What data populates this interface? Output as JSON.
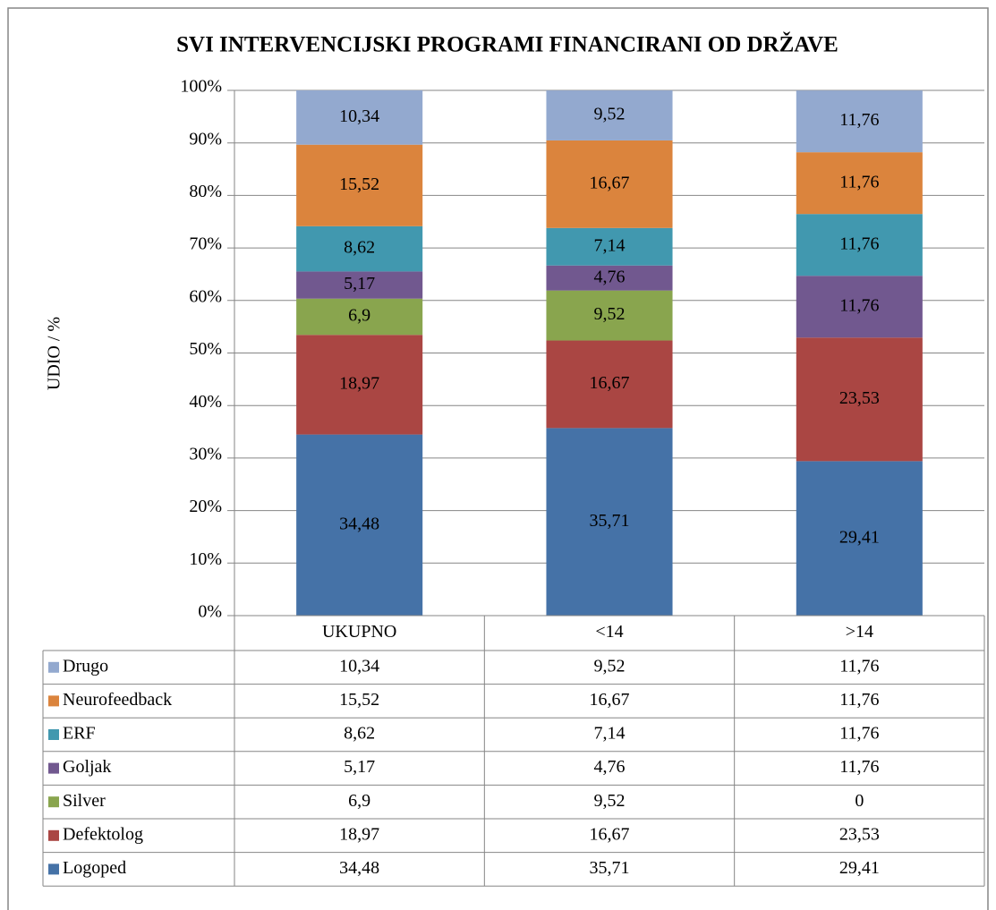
{
  "chart_data": {
    "type": "stacked_bar_100",
    "title": "SVI INTERVENCIJSKI PROGRAMI FINANCIRANI OD DRŽAVE",
    "y_label": "UDIO  / %",
    "categories": [
      "UKUPNO",
      "<14",
      ">14"
    ],
    "series": [
      {
        "name": "Logoped",
        "color": "#4572a7",
        "values": [
          34.48,
          35.71,
          29.41
        ],
        "value_labels": [
          "34,48",
          "35,71",
          "29,41"
        ]
      },
      {
        "name": "Defektolog",
        "color": "#aa4643",
        "values": [
          18.97,
          16.67,
          23.53
        ],
        "value_labels": [
          "18,97",
          "16,67",
          "23,53"
        ]
      },
      {
        "name": "Silver",
        "color": "#89a54e",
        "values": [
          6.9,
          9.52,
          0
        ],
        "value_labels": [
          "6,9",
          "9,52",
          "0"
        ]
      },
      {
        "name": "Goljak",
        "color": "#71588f",
        "values": [
          5.17,
          4.76,
          11.76
        ],
        "value_labels": [
          "5,17",
          "4,76",
          "11,76"
        ]
      },
      {
        "name": "ERF",
        "color": "#4198af",
        "values": [
          8.62,
          7.14,
          11.76
        ],
        "value_labels": [
          "8,62",
          "7,14",
          "11,76"
        ]
      },
      {
        "name": "Neurofeedback",
        "color": "#db843d",
        "values": [
          15.52,
          16.67,
          11.76
        ],
        "value_labels": [
          "15,52",
          "16,67",
          "11,76"
        ]
      },
      {
        "name": "Drugo",
        "color": "#93a9cf",
        "values": [
          10.34,
          9.52,
          11.76
        ],
        "value_labels": [
          "10,34",
          "9,52",
          "11,76"
        ]
      }
    ],
    "ylim": [
      0,
      100
    ],
    "yticks": [
      {
        "value": 0,
        "label": "0%"
      },
      {
        "value": 10,
        "label": "10%"
      },
      {
        "value": 20,
        "label": "20%"
      },
      {
        "value": 30,
        "label": "30%"
      },
      {
        "value": 40,
        "label": "40%"
      },
      {
        "value": 50,
        "label": "50%"
      },
      {
        "value": 60,
        "label": "60%"
      },
      {
        "value": 70,
        "label": "70%"
      },
      {
        "value": 80,
        "label": "80%"
      },
      {
        "value": 90,
        "label": "90%"
      },
      {
        "value": 100,
        "label": "100%"
      }
    ],
    "grid": true,
    "data_table": true
  }
}
